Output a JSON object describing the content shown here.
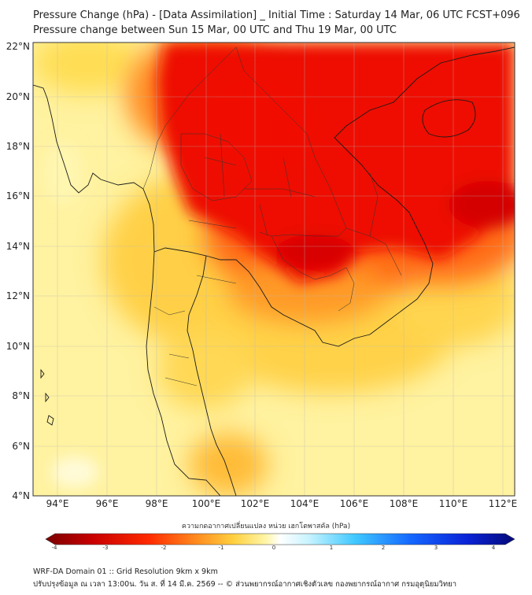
{
  "title": {
    "line1": "Pressure Change (hPa) - [Data Assimilation] _ Initial Time : Saturday 14 Mar, 06 UTC FCST+096",
    "line2": "Pressure change between Sun 15 Mar, 00 UTC and Thu 19 Mar, 00 UTC"
  },
  "map": {
    "lat_labels": [
      "22°N",
      "20°N",
      "18°N",
      "16°N",
      "14°N",
      "12°N",
      "10°N",
      "8°N",
      "6°N",
      "4°N"
    ],
    "lon_labels": [
      "94°E",
      "96°E",
      "98°E",
      "100°E",
      "102°E",
      "104°E",
      "106°E",
      "108°E",
      "110°E",
      "112°E"
    ],
    "lat_range": [
      4,
      22
    ],
    "lon_range": [
      93,
      112.5
    ],
    "field_description_colors": {
      "strong_fall": "#e20000",
      "moderate_fall": "#ff5a10",
      "weak_fall": "#ffb030",
      "near_zero": "#fff9a8"
    }
  },
  "colorbar": {
    "title": "ความกดอากาศเปลี่ยนแปลง หน่วย เฮกโตพาสคัล (hPa)",
    "ticks": [
      "-4",
      "-3",
      "-2",
      "-1",
      "0",
      "1",
      "2",
      "3",
      "4"
    ],
    "range": [
      -4,
      4
    ]
  },
  "footer": {
    "line1": "WRF-DA Domain 01 :: Grid Resolution 9km x 9km",
    "line2": "ปรับปรุงข้อมูล ณ เวลา 13:00น. วัน ส. ที่ 14 มี.ค. 2569 -- © ส่วนพยากรณ์อากาศเชิงตัวเลข กองพยากรณ์อากาศ กรมอุตุนิยมวิทยา"
  }
}
